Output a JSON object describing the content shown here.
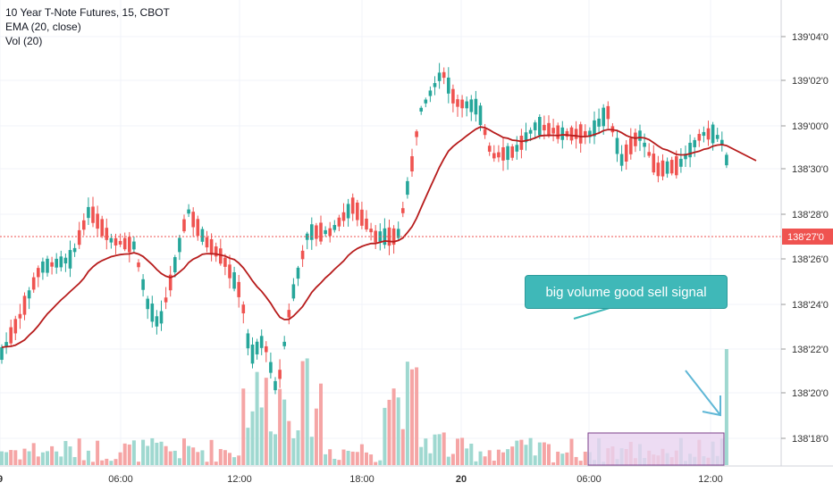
{
  "legend": {
    "symbol": "10 Year T-Note Futures, 15, CBOT",
    "ema": "EMA (20, close)",
    "vol": "Vol (20)"
  },
  "annotation": {
    "text": "big volume good sell signal"
  },
  "colors": {
    "up": "#26a69a",
    "down": "#ef5350",
    "ema": "#b71c1c",
    "vol_up": "#9fd8d0",
    "vol_down": "#f5a5a5",
    "price_line": "#ef5350",
    "callout": "#3fb8b8",
    "highlight_box": "#e1bee7"
  },
  "chart_data": {
    "type": "candlestick",
    "y_axis_ticks": [
      "139'04'0",
      "139'02'0",
      "139'00'0",
      "138'30'0",
      "138'28'0",
      "138'26'0",
      "138'24'0",
      "138'22'0",
      "138'20'0",
      "138'18'0"
    ],
    "x_axis_ticks": [
      "9",
      "06:00",
      "12:00",
      "18:00",
      "20",
      "06:00",
      "12:00"
    ],
    "last_price": "138'27'0",
    "grid": true,
    "series": [
      {
        "name": "EMA (20, close)",
        "kind": "line"
      },
      {
        "name": "Vol (20)",
        "kind": "volume"
      }
    ],
    "price_line": "138'27'0"
  }
}
